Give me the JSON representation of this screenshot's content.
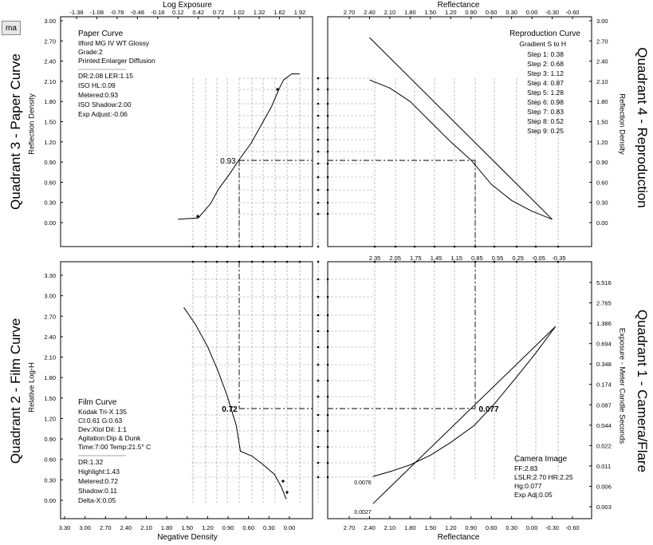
{
  "toolbar": {
    "button_label": "ma"
  },
  "quadrant_titles": {
    "q3": "Quadrant 3 - Paper Curve",
    "q4": "Quadrant 4 - Reproduction",
    "q2": "Quadrant 2 - Film Curve",
    "q1": "Quadrant 1 - Camera/Flare"
  },
  "axis_titles": {
    "top_left": "Log Exposure",
    "top_right": "Reflectance",
    "bottom_left": "Negative Density",
    "bottom_right": "Reflectance",
    "q3_y": "Reflection Density",
    "q4_y": "Reflection Density",
    "q2_y": "Relative Log-H",
    "q1_y": "Exposure - Meter Candle Seconds"
  },
  "ticks": {
    "log_exposure": [
      "-1.38",
      "-1.08",
      "-0.78",
      "-0.48",
      "-0.18",
      "0.12",
      "0.42",
      "0.72",
      "1.02",
      "1.32",
      "1.62",
      "1.92"
    ],
    "reflectance_top": [
      "2.70",
      "2.40",
      "2.10",
      "1.80",
      "1.50",
      "1.20",
      "0.90",
      "0.60",
      "0.30",
      "0.00",
      "-0.30",
      "-0.60"
    ],
    "density_y": [
      "3.00",
      "2.70",
      "2.40",
      "2.10",
      "1.80",
      "1.50",
      "1.20",
      "0.90",
      "0.60",
      "0.30",
      "0.00"
    ],
    "reflectance_mid": [
      "2.35",
      "2.05",
      "1.75",
      "1.45",
      "1.15",
      "0.85",
      "0.55",
      "0.25",
      "-0.05",
      "-0.35"
    ],
    "log_h_y": [
      "3.30",
      "3.00",
      "2.70",
      "2.40",
      "2.10",
      "1.80",
      "1.50",
      "1.20",
      "0.90",
      "0.60",
      "0.30",
      "0.00"
    ],
    "exposure_y": [
      "5.516",
      "2.765",
      "1.386",
      "0.694",
      "0.348",
      "0.174",
      "0.087",
      "0.044",
      "0.022",
      "0.011",
      "0.006",
      "0.003"
    ],
    "negative_density": [
      "3.30",
      "3.00",
      "2.70",
      "2.40",
      "2.10",
      "1.80",
      "1.50",
      "1.20",
      "0.90",
      "0.60",
      "0.30",
      "0.00"
    ],
    "reflectance_bottom": [
      "2.70",
      "2.40",
      "2.10",
      "1.80",
      "1.50",
      "1.20",
      "0.90",
      "0.60",
      "0.30",
      "0.00",
      "-0.30",
      "-0.60"
    ]
  },
  "paper_info": {
    "title": "Paper Curve",
    "lines": [
      "Ilford MG IV WT  Glossy",
      "Grade:2",
      "Printed:Enlarger Diffusion"
    ],
    "stats": [
      "DR:2.08  LER:1.15",
      "ISO HL:0.09",
      "Metered:0.93",
      "ISO Shadow:2.00",
      "Exp Adjust:-0.06"
    ]
  },
  "repro_info": {
    "title": "Reproduction Curve",
    "subtitle": "Gradient S to H",
    "steps": [
      "Step 1: 0.38",
      "Step 2: 0.68",
      "Step 3: 1.12",
      "Step 4: 0.87",
      "Step 5: 1.28",
      "Step 6: 0.98",
      "Step 7: 0.83",
      "Step 8: 0.52",
      "Step 9: 0.25"
    ]
  },
  "film_info": {
    "title": "Film Curve",
    "lines": [
      "Kodak Tri-X 135",
      "CI:0.61  G:0.63",
      "Dev:Xtol  Dil: 1:1",
      "Agitation:Dip & Dunk",
      "Time:7:00  Temp:21.5° C"
    ],
    "stats": [
      "DR:1.32",
      "Highlight:1.43",
      "Metered:0.72",
      "Shadow:0.11",
      "Delta-X:0.05"
    ]
  },
  "camera_info": {
    "title": "Camera Image",
    "lines": [
      "FF:2.83",
      "LSLR:2.70 HR:2.25",
      "Hg:0.077",
      "Exp Adj:0.05"
    ]
  },
  "markers": {
    "paper_metered": "0.93",
    "film_metered": "0.72",
    "camera_hg": "0.077",
    "flare_top": "0.0076",
    "flare_bottom": "0.0027"
  },
  "chart_data": [
    {
      "type": "line",
      "name": "paper_curve",
      "xlabel": "Log Exposure",
      "ylabel": "Reflection Density",
      "xlim": [
        -1.38,
        1.92
      ],
      "ylim": [
        0.0,
        3.0
      ],
      "x": [
        0.12,
        0.42,
        0.6,
        0.72,
        0.88,
        1.02,
        1.2,
        1.35,
        1.5,
        1.62,
        1.68,
        1.8,
        1.92
      ],
      "y": [
        0.05,
        0.07,
        0.28,
        0.5,
        0.72,
        0.93,
        1.18,
        1.45,
        1.72,
        2.0,
        2.12,
        2.21,
        2.21
      ]
    },
    {
      "type": "line",
      "name": "reproduction_curve",
      "xlabel": "Reflectance",
      "ylabel": "Reflection Density",
      "xlim": [
        2.7,
        -0.6
      ],
      "ylim": [
        0.0,
        3.0
      ],
      "x": [
        2.4,
        2.1,
        1.8,
        1.5,
        1.2,
        0.9,
        0.6,
        0.3,
        0.0,
        -0.3
      ],
      "y": [
        2.12,
        2.0,
        1.8,
        1.5,
        1.2,
        0.93,
        0.57,
        0.33,
        0.17,
        0.05
      ]
    },
    {
      "type": "line",
      "name": "reference_line",
      "x": [
        2.4,
        -0.3
      ],
      "y": [
        2.75,
        0.05
      ]
    },
    {
      "type": "line",
      "name": "film_curve",
      "xlabel": "Negative Density",
      "ylabel": "Relative Log-H",
      "xlim": [
        3.3,
        0.0
      ],
      "ylim": [
        0.0,
        3.3
      ],
      "x": [
        1.55,
        1.38,
        1.2,
        1.05,
        0.92,
        0.78,
        0.72,
        0.55,
        0.38,
        0.22,
        0.12,
        0.08,
        0.05
      ],
      "y": [
        2.83,
        2.58,
        2.25,
        1.9,
        1.55,
        1.1,
        0.72,
        0.65,
        0.52,
        0.38,
        0.2,
        0.1,
        0.02
      ]
    },
    {
      "type": "line",
      "name": "camera_flare_curve",
      "xlabel": "Reflectance",
      "ylabel": "Exposure - Meter Candle Seconds",
      "xlim": [
        2.7,
        -0.6
      ],
      "ylim": [
        0.0,
        3.3
      ],
      "x": [
        2.35,
        2.1,
        1.8,
        1.5,
        1.2,
        0.85,
        0.55,
        0.25,
        -0.05,
        -0.35
      ],
      "y": [
        0.35,
        0.42,
        0.52,
        0.66,
        0.85,
        1.1,
        1.42,
        1.78,
        2.15,
        2.55
      ]
    },
    {
      "type": "line",
      "name": "camera_no_flare_line",
      "x": [
        2.35,
        -0.35
      ],
      "y": [
        -0.05,
        2.55
      ]
    }
  ]
}
